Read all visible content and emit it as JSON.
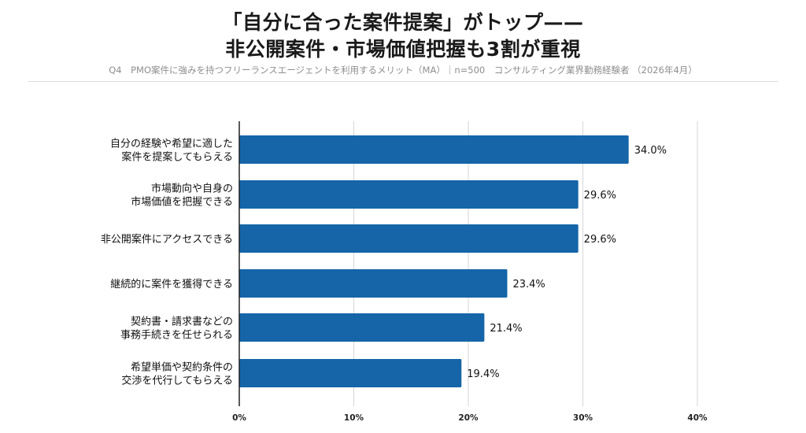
{
  "header": {
    "title_line1": "「自分に合った案件提案」がトップ——",
    "title_line2": "非公開案件・市場価値把握も3割が重視",
    "subtitle": "Q4　PMO案件に強みを持つフリーランスエージェントを利用するメリット（MA）｜n=500　コンサルティング業界勤務経験者 （2026年4月）"
  },
  "colors": {
    "bar": "#1565a8",
    "grid": "#d6d6d6",
    "axis": "#222222"
  },
  "chart_data": {
    "type": "bar",
    "orientation": "horizontal",
    "categories": [
      [
        "自分の経験や希望に適した",
        "案件を提案してもらえる"
      ],
      [
        "市場動向や自身の",
        "市場価値を把握できる"
      ],
      [
        "非公開案件にアクセスできる"
      ],
      [
        "継続的に案件を獲得できる"
      ],
      [
        "契約書・請求書などの",
        "事務手続きを任せられる"
      ],
      [
        "希望単価や契約条件の",
        "交渉を代行してもらえる"
      ]
    ],
    "values": [
      34.0,
      29.6,
      29.6,
      23.4,
      21.4,
      19.4
    ],
    "value_labels": [
      "34.0%",
      "29.6%",
      "29.6%",
      "23.4%",
      "21.4%",
      "19.4%"
    ],
    "xlim": [
      0,
      40
    ],
    "ticks": [
      0,
      10,
      20,
      30,
      40
    ],
    "tick_labels": [
      "0%",
      "10%",
      "20%",
      "30%",
      "40%"
    ],
    "grid": true
  }
}
